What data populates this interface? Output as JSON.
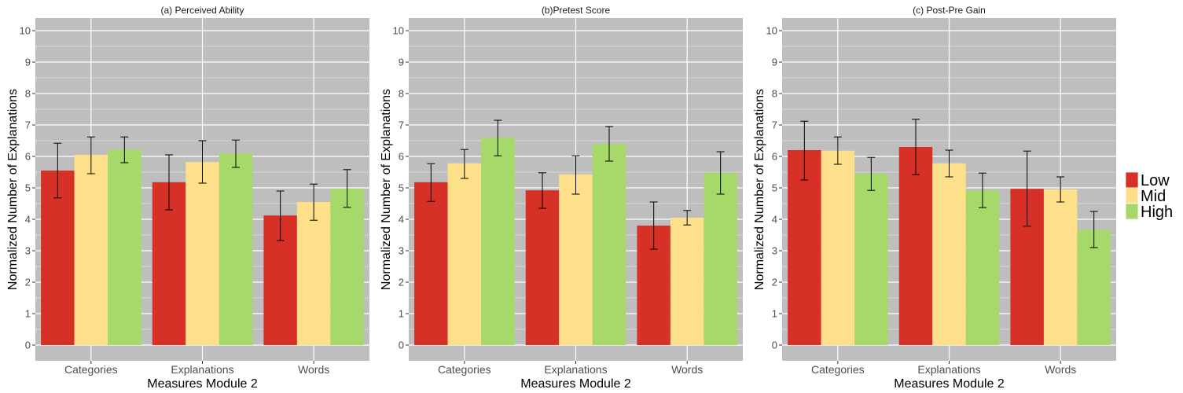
{
  "chart_data": [
    {
      "type": "bar",
      "title": "(a) Perceived Ability",
      "xlabel": "Measures Module 2",
      "ylabel": "Normalized Number of Explanations",
      "categories": [
        "Categories",
        "Explanations",
        "Words"
      ],
      "ylim": [
        -0.5,
        10.4
      ],
      "yticks": [
        0,
        1,
        2,
        3,
        4,
        5,
        6,
        7,
        8,
        9,
        10
      ],
      "series": [
        {
          "name": "Low",
          "values": [
            5.55,
            5.18,
            4.12
          ],
          "err_low": [
            4.68,
            4.3,
            3.32
          ],
          "err_high": [
            6.42,
            6.05,
            4.9
          ]
        },
        {
          "name": "Mid",
          "values": [
            6.05,
            5.82,
            4.55
          ],
          "err_low": [
            5.45,
            5.15,
            3.97
          ],
          "err_high": [
            6.62,
            6.5,
            5.12
          ]
        },
        {
          "name": "High",
          "values": [
            6.22,
            6.1,
            4.98
          ],
          "err_low": [
            5.8,
            5.65,
            4.38
          ],
          "err_high": [
            6.62,
            6.52,
            5.58
          ]
        }
      ]
    },
    {
      "type": "bar",
      "title": "(b)Pretest Score",
      "xlabel": "Measures Module 2",
      "ylabel": "Normalized Number of Explanations",
      "categories": [
        "Categories",
        "Explanations",
        "Words"
      ],
      "ylim": [
        -0.5,
        10.4
      ],
      "yticks": [
        0,
        1,
        2,
        3,
        4,
        5,
        6,
        7,
        8,
        9,
        10
      ],
      "series": [
        {
          "name": "Low",
          "values": [
            5.18,
            4.92,
            3.8
          ],
          "err_low": [
            4.57,
            4.35,
            3.05
          ],
          "err_high": [
            5.77,
            5.48,
            4.55
          ]
        },
        {
          "name": "Mid",
          "values": [
            5.78,
            5.43,
            4.05
          ],
          "err_low": [
            5.3,
            4.8,
            3.82
          ],
          "err_high": [
            6.22,
            6.02,
            4.28
          ]
        },
        {
          "name": "High",
          "values": [
            6.6,
            6.4,
            5.48
          ],
          "err_low": [
            6.02,
            5.85,
            4.8
          ],
          "err_high": [
            7.15,
            6.95,
            6.15
          ]
        }
      ]
    },
    {
      "type": "bar",
      "title": "(c) Post-Pre Gain",
      "xlabel": "Measures Module 2",
      "ylabel": "Normalized Number of Explanations",
      "categories": [
        "Categories",
        "Explanations",
        "Words"
      ],
      "ylim": [
        -0.5,
        10.4
      ],
      "yticks": [
        0,
        1,
        2,
        3,
        4,
        5,
        6,
        7,
        8,
        9,
        10
      ],
      "series": [
        {
          "name": "Low",
          "values": [
            6.2,
            6.3,
            4.97
          ],
          "err_low": [
            5.25,
            5.42,
            3.78
          ],
          "err_high": [
            7.12,
            7.18,
            6.17
          ]
        },
        {
          "name": "Mid",
          "values": [
            6.18,
            5.78,
            4.95
          ],
          "err_low": [
            5.75,
            5.35,
            4.55
          ],
          "err_high": [
            6.62,
            6.2,
            5.35
          ]
        },
        {
          "name": "High",
          "values": [
            5.45,
            4.92,
            3.67
          ],
          "err_low": [
            4.92,
            4.37,
            3.1
          ],
          "err_high": [
            5.97,
            5.47,
            4.25
          ]
        }
      ]
    }
  ],
  "legend": {
    "placement": "right",
    "items": [
      {
        "label": "Low",
        "color": "#d73027"
      },
      {
        "label": "Mid",
        "color": "#fee08b"
      },
      {
        "label": "High",
        "color": "#a6d96a"
      }
    ]
  },
  "style": {
    "panel_bg": "#bebebe",
    "grid_color": "#ffffff",
    "error_bar_color": "#000000"
  }
}
